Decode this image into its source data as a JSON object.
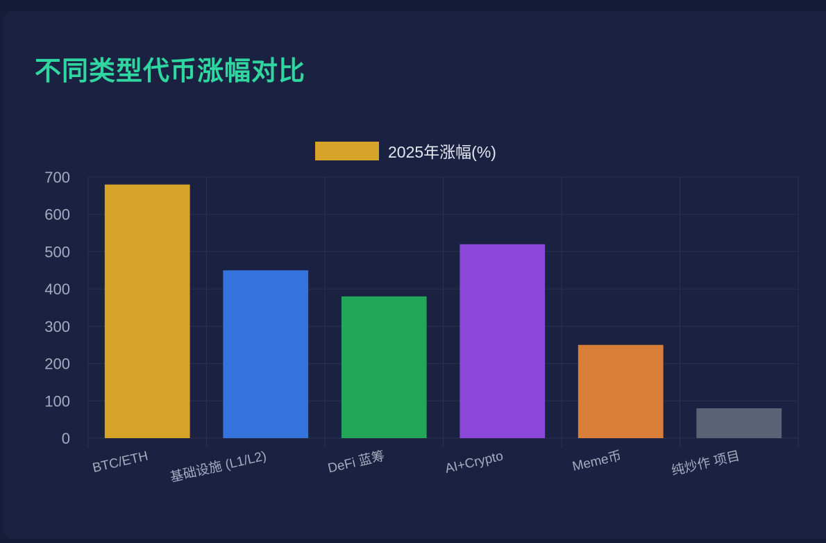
{
  "page": {
    "title": "不同类型代币涨幅对比"
  },
  "colors": {
    "background": "#151c38",
    "card": "#1b2140",
    "title": "#2fd6a0",
    "grid": "#2a3350",
    "tick_text": "#a5acc0",
    "legend_text": "#e4e7ef"
  },
  "chart_data": {
    "type": "bar",
    "title": "",
    "xlabel": "",
    "ylabel": "",
    "categories": [
      "BTC/ETH",
      "基础设施 (L1/L2)",
      "DeFi 蓝筹",
      "AI+Crypto",
      "Meme币",
      "纯炒作 项目"
    ],
    "series": [
      {
        "name": "2025年涨幅(%)",
        "values": [
          680,
          450,
          380,
          520,
          250,
          80
        ],
        "legend_color": "#d4a327",
        "bar_colors": [
          "#d4a327",
          "#3573dc",
          "#22a758",
          "#8b48d8",
          "#d97e38",
          "#5c6276"
        ]
      }
    ],
    "ylim": [
      0,
      700
    ],
    "yticks": [
      0,
      100,
      200,
      300,
      400,
      500,
      600,
      700
    ],
    "grid": true,
    "legend_position": "top-center"
  }
}
